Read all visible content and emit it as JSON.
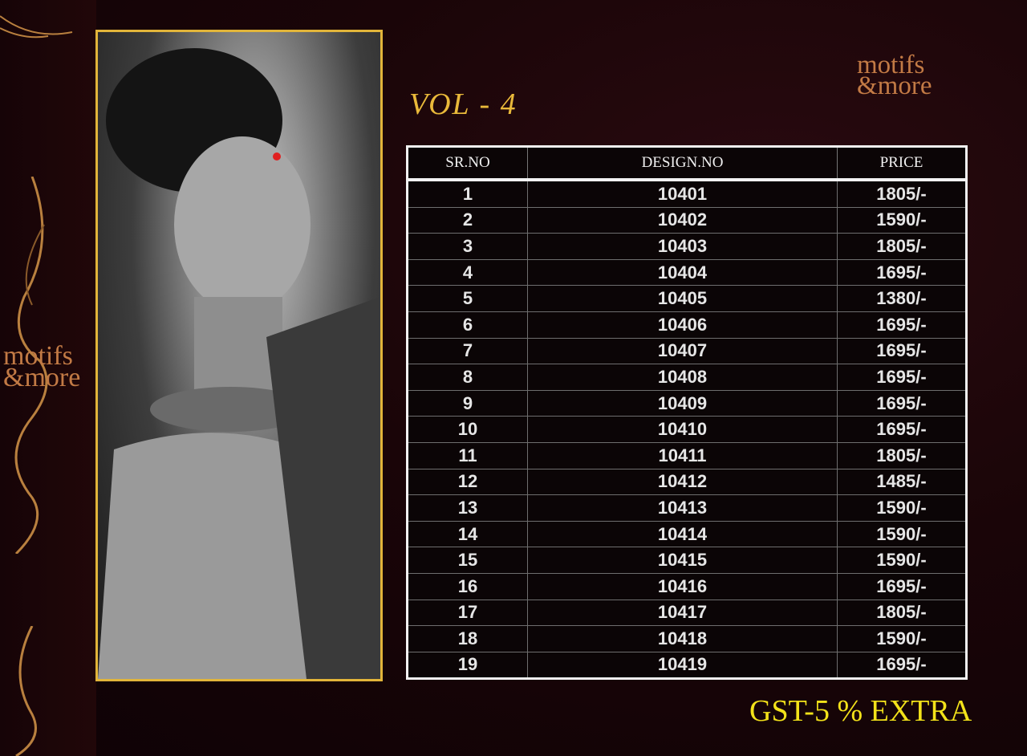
{
  "brand": {
    "logo_line1": "motifs",
    "logo_line2": "&more",
    "accent": "#c27a45"
  },
  "title": "VOL - 4",
  "table": {
    "headers": [
      "SR.NO",
      "DESIGN.NO",
      "PRICE"
    ],
    "rows": [
      [
        "1",
        "10401",
        "1805/-"
      ],
      [
        "2",
        "10402",
        "1590/-"
      ],
      [
        "3",
        "10403",
        "1805/-"
      ],
      [
        "4",
        "10404",
        "1695/-"
      ],
      [
        "5",
        "10405",
        "1380/-"
      ],
      [
        "6",
        "10406",
        "1695/-"
      ],
      [
        "7",
        "10407",
        "1695/-"
      ],
      [
        "8",
        "10408",
        "1695/-"
      ],
      [
        "9",
        "10409",
        "1695/-"
      ],
      [
        "10",
        "10410",
        "1695/-"
      ],
      [
        "11",
        "10411",
        "1805/-"
      ],
      [
        "12",
        "10412",
        "1485/-"
      ],
      [
        "13",
        "10413",
        "1590/-"
      ],
      [
        "14",
        "10414",
        "1590/-"
      ],
      [
        "15",
        "10415",
        "1590/-"
      ],
      [
        "16",
        "10416",
        "1695/-"
      ],
      [
        "17",
        "10417",
        "1805/-"
      ],
      [
        "18",
        "10418",
        "1590/-"
      ],
      [
        "19",
        "10419",
        "1695/-"
      ]
    ]
  },
  "footer_note": "GST-5 % EXTRA",
  "colors": {
    "frame": "#e2b53a",
    "title": "#e9b93a",
    "footer": "#f3e21a"
  }
}
